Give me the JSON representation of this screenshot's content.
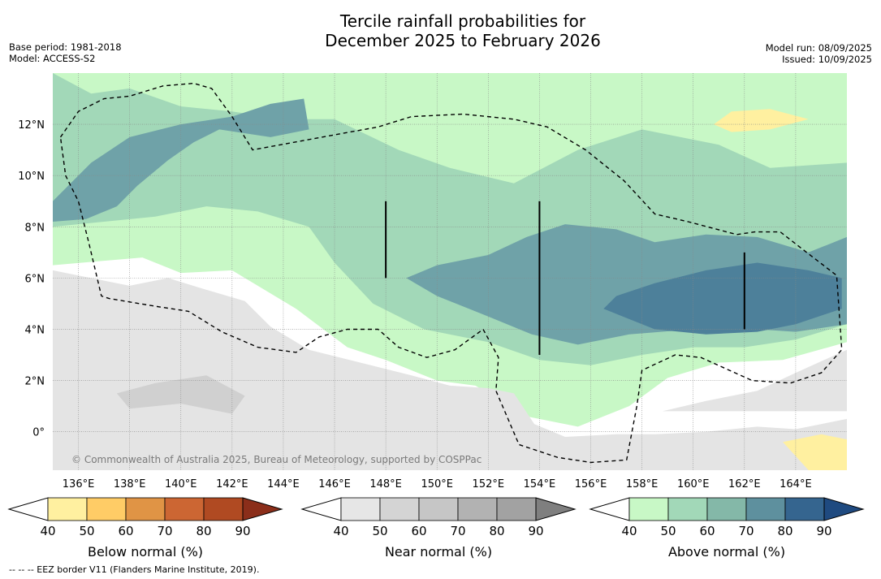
{
  "title_line1": "Tercile rainfall probabilities for",
  "title_line2": "December 2025 to February 2026",
  "base_period": "Base period: 1981-2018",
  "model": "Model: ACCESS-S2",
  "model_run": "Model run: 08/09/2025",
  "issued": "Issued: 10/09/2025",
  "copyright": "© Commonwealth of Australia 2025, Bureau of Meteorology, supported by COSPPac",
  "footnote": "--  --  -- EEZ border V11 (Flanders Marine Institute, 2019).",
  "chart_data": {
    "type": "heatmap",
    "xlim": [
      135,
      166
    ],
    "ylim": [
      -1.5,
      14
    ],
    "x_ticks": [
      {
        "value": 136,
        "label": "136°E"
      },
      {
        "value": 138,
        "label": "138°E"
      },
      {
        "value": 140,
        "label": "140°E"
      },
      {
        "value": 142,
        "label": "142°E"
      },
      {
        "value": 144,
        "label": "144°E"
      },
      {
        "value": 146,
        "label": "146°E"
      },
      {
        "value": 148,
        "label": "148°E"
      },
      {
        "value": 150,
        "label": "150°E"
      },
      {
        "value": 152,
        "label": "152°E"
      },
      {
        "value": 154,
        "label": "154°E"
      },
      {
        "value": 156,
        "label": "156°E"
      },
      {
        "value": 158,
        "label": "158°E"
      },
      {
        "value": 160,
        "label": "160°E"
      },
      {
        "value": 162,
        "label": "162°E"
      },
      {
        "value": 164,
        "label": "164°E"
      }
    ],
    "y_ticks": [
      {
        "value": 12,
        "label": "12°N"
      },
      {
        "value": 10,
        "label": "10°N"
      },
      {
        "value": 8,
        "label": "8°N"
      },
      {
        "value": 6,
        "label": "6°N"
      },
      {
        "value": 4,
        "label": "4°N"
      },
      {
        "value": 2,
        "label": "2°N"
      },
      {
        "value": 0,
        "label": "0°"
      }
    ],
    "grid": true,
    "colorbars": [
      {
        "label": "Below normal (%)",
        "ticks": [
          "40",
          "50",
          "60",
          "70",
          "80",
          "90"
        ],
        "colors": [
          "#fff0a0",
          "#ffcc66",
          "#e09445",
          "#cc6633",
          "#b04a22",
          "#8b2e1a"
        ]
      },
      {
        "label": "Near normal (%)",
        "ticks": [
          "40",
          "50",
          "60",
          "70",
          "80",
          "90"
        ],
        "colors": [
          "#e6e6e6",
          "#d4d4d4",
          "#c6c6c6",
          "#b2b2b2",
          "#a2a2a2",
          "#7f7f7f"
        ]
      },
      {
        "label": "Above normal (%)",
        "ticks": [
          "40",
          "50",
          "60",
          "70",
          "80",
          "90"
        ],
        "colors": [
          "#c8f8c6",
          "#a2d8b8",
          "#84b8a8",
          "#5e909e",
          "#35658f",
          "#1f4a80"
        ]
      }
    ],
    "eez_border": [
      [
        135.3,
        11.5
      ],
      [
        136,
        12.5
      ],
      [
        137,
        13.0
      ],
      [
        138,
        13.1
      ],
      [
        139.3,
        13.5
      ],
      [
        140.5,
        13.6
      ],
      [
        141.2,
        13.4
      ],
      [
        142,
        12.3
      ],
      [
        142.8,
        11.0
      ],
      [
        145.5,
        11.5
      ],
      [
        147.7,
        11.9
      ],
      [
        149,
        12.3
      ],
      [
        151,
        12.4
      ],
      [
        153,
        12.2
      ],
      [
        154.3,
        11.9
      ],
      [
        155.8,
        11.0
      ],
      [
        157.3,
        9.8
      ],
      [
        158.5,
        8.5
      ],
      [
        159.8,
        8.2
      ],
      [
        161.7,
        7.7
      ],
      [
        162.4,
        7.8
      ],
      [
        163.4,
        7.8
      ],
      [
        164.3,
        7.1
      ],
      [
        165.6,
        6.1
      ],
      [
        165.8,
        3.2
      ],
      [
        165,
        2.3
      ],
      [
        163.8,
        1.9
      ],
      [
        162.3,
        2.0
      ],
      [
        160.3,
        2.9
      ],
      [
        159.3,
        3.0
      ],
      [
        158,
        2.4
      ],
      [
        157.8,
        1.0
      ],
      [
        157.4,
        -1.1
      ],
      [
        156,
        -1.2
      ],
      [
        154.7,
        -1.0
      ],
      [
        153.2,
        -0.5
      ],
      [
        152.3,
        1.6
      ],
      [
        152.4,
        2.9
      ],
      [
        151.8,
        4.0
      ],
      [
        150.7,
        3.2
      ],
      [
        149.6,
        2.9
      ],
      [
        148.5,
        3.3
      ],
      [
        147.7,
        4.0
      ],
      [
        146.5,
        4.0
      ],
      [
        145.4,
        3.7
      ],
      [
        144.5,
        3.1
      ],
      [
        143,
        3.3
      ],
      [
        141.6,
        3.9
      ],
      [
        140.3,
        4.7
      ],
      [
        139,
        4.9
      ],
      [
        137.2,
        5.2
      ],
      [
        136.9,
        5.3
      ],
      [
        136.4,
        7.4
      ],
      [
        136,
        9.0
      ],
      [
        135.5,
        10.0
      ],
      [
        135.3,
        11.5
      ]
    ],
    "regions": [
      {
        "name": "above-40",
        "color": "#c8f8c6",
        "polygon": [
          [
            135,
            6.5
          ],
          [
            138.5,
            6.8
          ],
          [
            140,
            6.2
          ],
          [
            142,
            6.3
          ],
          [
            144.5,
            4.8
          ],
          [
            146.5,
            3.3
          ],
          [
            148,
            2.8
          ],
          [
            150,
            2.0
          ],
          [
            151.5,
            1.8
          ],
          [
            153.5,
            0.6
          ],
          [
            155.5,
            0.2
          ],
          [
            157.5,
            1.0
          ],
          [
            159,
            2.1
          ],
          [
            161,
            2.7
          ],
          [
            163.5,
            2.8
          ],
          [
            166,
            3.5
          ],
          [
            166,
            14
          ],
          [
            135,
            14
          ]
        ]
      },
      {
        "name": "above-50",
        "color": "#a2d8b8",
        "polygon": [
          [
            135,
            8
          ],
          [
            137,
            8.2
          ],
          [
            139,
            8.4
          ],
          [
            141,
            8.8
          ],
          [
            143,
            8.6
          ],
          [
            145,
            8.0
          ],
          [
            146,
            6.6
          ],
          [
            147.5,
            5.0
          ],
          [
            149.5,
            4.0
          ],
          [
            152,
            3.5
          ],
          [
            154,
            2.8
          ],
          [
            156,
            2.6
          ],
          [
            158,
            3.0
          ],
          [
            160,
            3.3
          ],
          [
            162,
            3.3
          ],
          [
            164,
            3.6
          ],
          [
            166,
            4.2
          ],
          [
            166,
            10.5
          ],
          [
            163,
            10.3
          ],
          [
            161,
            11.2
          ],
          [
            158,
            11.8
          ],
          [
            155.5,
            11.0
          ],
          [
            153,
            9.7
          ],
          [
            150.5,
            10.3
          ],
          [
            148.5,
            11.0
          ],
          [
            146,
            12.2
          ],
          [
            144,
            12.2
          ],
          [
            142,
            12.5
          ],
          [
            140,
            12.7
          ],
          [
            138,
            13.4
          ],
          [
            136.5,
            13.2
          ],
          [
            135,
            14
          ]
        ]
      },
      {
        "name": "above-60",
        "color": "#6fa2a8",
        "polygon": [
          [
            135,
            9.0
          ],
          [
            136.5,
            10.5
          ],
          [
            138,
            11.5
          ],
          [
            140,
            12.0
          ],
          [
            142,
            12.3
          ],
          [
            143.5,
            12.8
          ],
          [
            144.8,
            13.0
          ],
          [
            145,
            11.8
          ],
          [
            143.5,
            11.5
          ],
          [
            141.5,
            11.8
          ],
          [
            140.5,
            11.3
          ],
          [
            139.5,
            10.6
          ],
          [
            138.3,
            9.6
          ],
          [
            137.5,
            8.8
          ],
          [
            136.3,
            8.3
          ],
          [
            135,
            8.2
          ]
        ]
      },
      {
        "name": "above-60-east",
        "color": "#6fa2a8",
        "polygon": [
          [
            148.8,
            6.0
          ],
          [
            150,
            5.3
          ],
          [
            152,
            4.5
          ],
          [
            153.7,
            3.8
          ],
          [
            155.5,
            3.4
          ],
          [
            157.5,
            3.8
          ],
          [
            160,
            4.0
          ],
          [
            162.5,
            4.0
          ],
          [
            164,
            3.9
          ],
          [
            166,
            4.2
          ],
          [
            166,
            7.6
          ],
          [
            164.5,
            7.0
          ],
          [
            162.5,
            7.6
          ],
          [
            160.5,
            7.7
          ],
          [
            158.5,
            7.4
          ],
          [
            157,
            7.9
          ],
          [
            155,
            8.1
          ],
          [
            153.5,
            7.6
          ],
          [
            152,
            6.9
          ],
          [
            150,
            6.5
          ]
        ]
      },
      {
        "name": "above-70",
        "color": "#4d809a",
        "polygon": [
          [
            156.5,
            4.8
          ],
          [
            158.5,
            4.0
          ],
          [
            160.5,
            3.8
          ],
          [
            162.5,
            3.9
          ],
          [
            164,
            4.2
          ],
          [
            165.8,
            4.8
          ],
          [
            165.8,
            6.0
          ],
          [
            164.5,
            6.3
          ],
          [
            162.5,
            6.6
          ],
          [
            160.5,
            6.3
          ],
          [
            158.5,
            5.8
          ],
          [
            157,
            5.3
          ]
        ]
      },
      {
        "name": "near-40",
        "color": "#e4e4e4",
        "polygon": [
          [
            135,
            -1.5
          ],
          [
            135,
            6.3
          ],
          [
            136,
            6.1
          ],
          [
            138,
            5.7
          ],
          [
            139.5,
            6.0
          ],
          [
            140.8,
            5.6
          ],
          [
            142.5,
            5.1
          ],
          [
            143.5,
            4.1
          ],
          [
            145,
            3.2
          ],
          [
            147,
            2.7
          ],
          [
            149,
            2.2
          ],
          [
            150.5,
            1.8
          ],
          [
            152,
            1.7
          ],
          [
            153,
            1.5
          ],
          [
            153.8,
            0.3
          ],
          [
            155,
            -0.2
          ],
          [
            157,
            -0.1
          ],
          [
            158.5,
            -0.1
          ],
          [
            160.5,
            0.0
          ],
          [
            162.5,
            0.2
          ],
          [
            164,
            0.1
          ],
          [
            166,
            0.5
          ],
          [
            166,
            -1.5
          ]
        ]
      },
      {
        "name": "near-40-east",
        "color": "#e4e4e4",
        "polygon": [
          [
            158.8,
            0.8
          ],
          [
            160.5,
            1.2
          ],
          [
            162.5,
            1.6
          ],
          [
            164,
            2.3
          ],
          [
            166,
            3.2
          ],
          [
            166,
            0.8
          ]
        ]
      },
      {
        "name": "near-50",
        "color": "#d0d0d0",
        "polygon": [
          [
            137.5,
            1.5
          ],
          [
            139,
            1.9
          ],
          [
            141,
            2.2
          ],
          [
            142.5,
            1.4
          ],
          [
            142,
            0.7
          ],
          [
            140,
            1.1
          ],
          [
            138,
            0.9
          ]
        ]
      },
      {
        "name": "below-40",
        "color": "#fff0a0",
        "polygon": [
          [
            160.8,
            12.0
          ],
          [
            161.5,
            12.5
          ],
          [
            163,
            12.6
          ],
          [
            164.5,
            12.2
          ],
          [
            163,
            11.8
          ],
          [
            161.5,
            11.7
          ]
        ]
      },
      {
        "name": "below-40-south",
        "color": "#fff0a0",
        "polygon": [
          [
            163.5,
            -0.4
          ],
          [
            165,
            -0.1
          ],
          [
            166,
            -0.3
          ],
          [
            166,
            -1.5
          ],
          [
            164.5,
            -1.5
          ]
        ]
      }
    ],
    "lines": [
      {
        "x": 148,
        "y1": 6.0,
        "y2": 9.0
      },
      {
        "x": 154,
        "y1": 3.0,
        "y2": 9.0
      },
      {
        "x": 162,
        "y1": 4.0,
        "y2": 7.0
      }
    ]
  }
}
